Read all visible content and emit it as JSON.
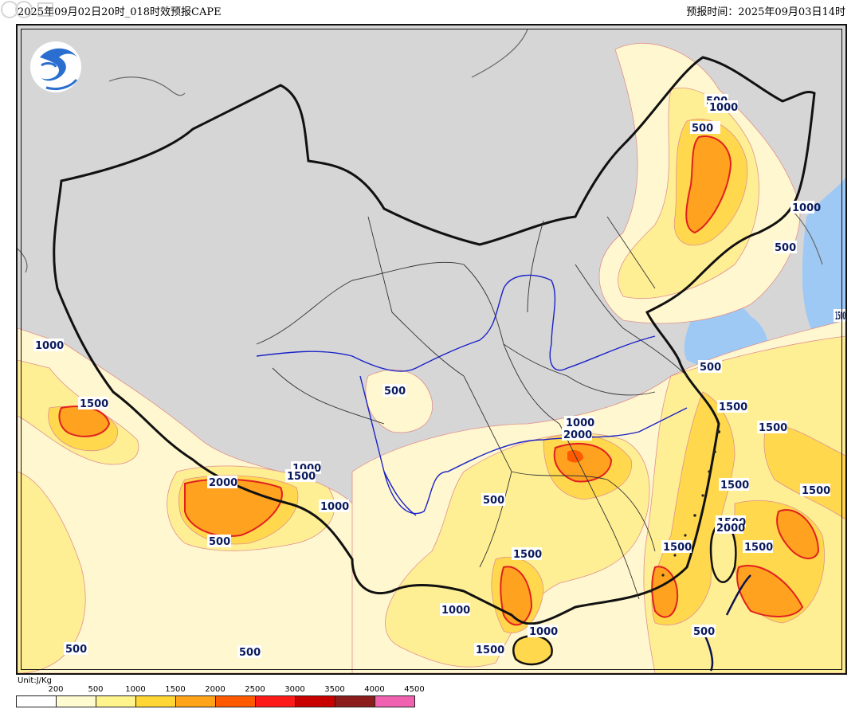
{
  "header": {
    "left_title": "2025年09月02日20时_018时效预报CAPE",
    "right_title": "预报时间：2025年09月03日14时"
  },
  "logo": {
    "icon": "weather-logo-icon"
  },
  "contour_labels": [
    {
      "text": "500"
    },
    {
      "text": "1000"
    },
    {
      "text": "1500"
    },
    {
      "text": "500"
    },
    {
      "text": "500"
    },
    {
      "text": "1000"
    },
    {
      "text": "1500"
    },
    {
      "text": "500"
    },
    {
      "text": "1000"
    },
    {
      "text": "2000"
    },
    {
      "text": "1500"
    },
    {
      "text": "1000"
    },
    {
      "text": "500"
    },
    {
      "text": "500"
    },
    {
      "text": "1000"
    },
    {
      "text": "2000"
    },
    {
      "text": "500"
    },
    {
      "text": "500"
    },
    {
      "text": "1500"
    },
    {
      "text": "1500"
    },
    {
      "text": "1500"
    },
    {
      "text": "1500"
    },
    {
      "text": "1000"
    },
    {
      "text": "1500"
    },
    {
      "text": "1500"
    },
    {
      "text": "1500"
    },
    {
      "text": "1000"
    },
    {
      "text": "1500"
    },
    {
      "text": "2000"
    },
    {
      "text": "500"
    },
    {
      "text": "500"
    },
    {
      "text": "1500"
    },
    {
      "text": "1000"
    }
  ],
  "legend": {
    "unit": "Unit:J/Kg",
    "ticks": [
      "200",
      "500",
      "1000",
      "1500",
      "2000",
      "2500",
      "3000",
      "3500",
      "4000",
      "4500"
    ],
    "colors": [
      "#ffffff",
      "#fffbd0",
      "#fff48c",
      "#ffd633",
      "#ffa319",
      "#ff5a00",
      "#ff1a1a",
      "#c80000",
      "#8b1c1c",
      "#f062b0"
    ]
  },
  "colors": {
    "land_other": "#d6d6d6",
    "sea": "#9ec9f5",
    "cape_500": "#fff7cf",
    "cape_1000": "#ffef94",
    "cape_1500": "#ffd84d",
    "cape_2000": "#ffa21f",
    "cape_2500": "#ff5a00",
    "border": "#111111",
    "river": "#1a22c8"
  }
}
